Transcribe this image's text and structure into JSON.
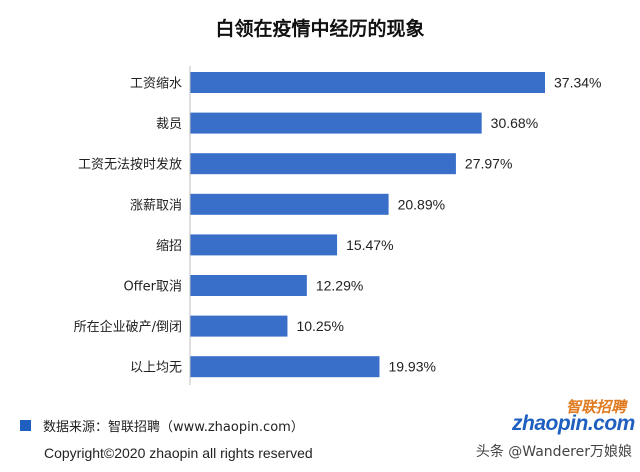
{
  "chart_data": {
    "type": "bar",
    "orientation": "horizontal",
    "title": "白领在疫情中经历的现象",
    "categories": [
      "工资缩水",
      "裁员",
      "工资无法按时发放",
      "涨薪取消",
      "缩招",
      "Offer取消",
      "所在企业破产/倒闭",
      "以上均无"
    ],
    "values": [
      37.34,
      30.68,
      27.97,
      20.89,
      15.47,
      12.29,
      10.25,
      19.93
    ],
    "value_labels": [
      "37.34%",
      "30.68%",
      "27.97%",
      "20.89%",
      "15.47%",
      "12.29%",
      "10.25%",
      "19.93%"
    ],
    "xlim": [
      0,
      40
    ],
    "bar_color": "#3a6fc9",
    "grid": false,
    "legend": "none"
  },
  "footer": {
    "source": "数据来源：智联招聘（www.zhaopin.com）",
    "copyright": "Copyright©2020 zhaopin all rights reserved",
    "watermark": "头条 @Wanderer万娘娘"
  },
  "logo": {
    "top_text": "智联招聘",
    "bottom_text": "zhaopin.com",
    "colors": {
      "top": "#e07a1f",
      "bottom": "#1f5fbf"
    }
  }
}
